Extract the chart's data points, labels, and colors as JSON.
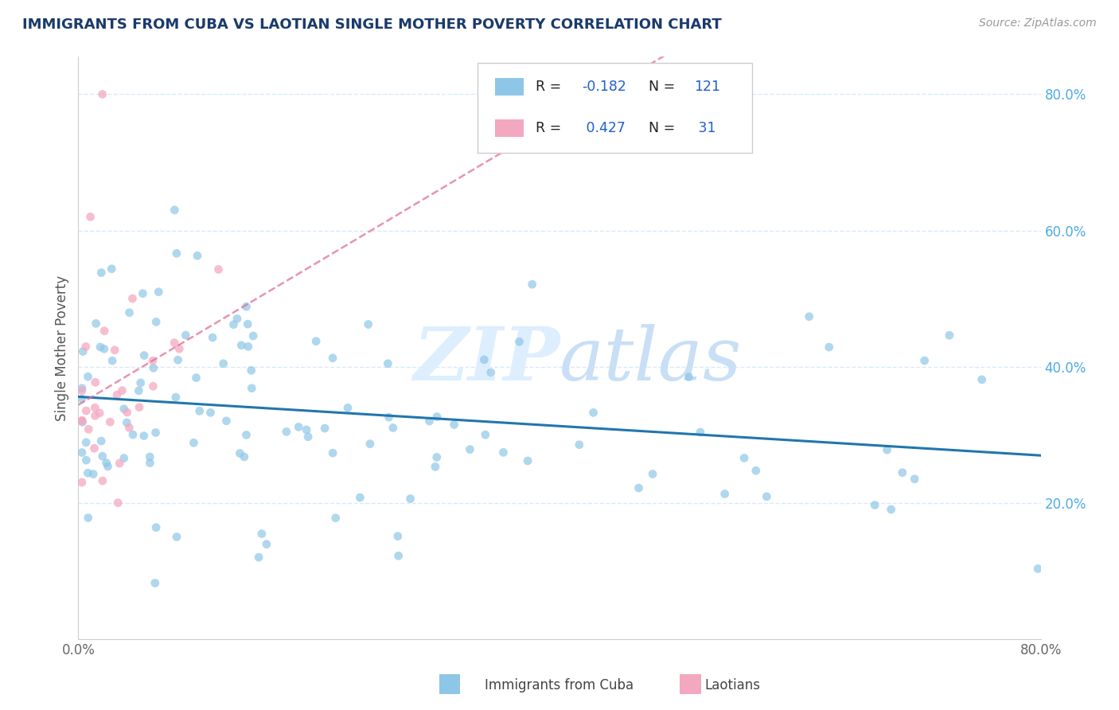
{
  "title": "IMMIGRANTS FROM CUBA VS LAOTIAN SINGLE MOTHER POVERTY CORRELATION CHART",
  "source": "Source: ZipAtlas.com",
  "ylabel": "Single Mother Poverty",
  "legend_label1": "Immigrants from Cuba",
  "legend_label2": "Laotians",
  "r1": -0.182,
  "n1": 121,
  "r2": 0.427,
  "n2": 31,
  "color1": "#8ec6e8",
  "color2": "#f4a8c0",
  "color1_line": "#2176ae",
  "color2_line": "#e07090",
  "watermark_color": "#ddeeff",
  "grid_color": "#d8eaf8",
  "ytick_color": "#4daae8",
  "xtick_color": "#666666",
  "title_color": "#1a3a6b",
  "source_color": "#999999",
  "ylabel_color": "#555555"
}
